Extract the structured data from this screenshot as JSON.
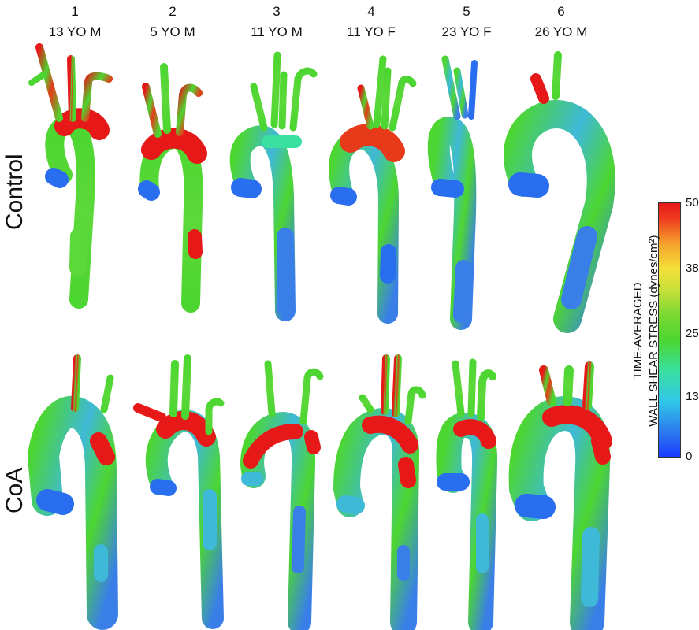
{
  "columns": [
    {
      "number": "1",
      "subject": "13 YO M"
    },
    {
      "number": "2",
      "subject": "5 YO M"
    },
    {
      "number": "3",
      "subject": "11 YO M"
    },
    {
      "number": "4",
      "subject": "11 YO F"
    },
    {
      "number": "5",
      "subject": "23 YO F"
    },
    {
      "number": "6",
      "subject": "26 YO M"
    }
  ],
  "rows": [
    {
      "label": "Control"
    },
    {
      "label": "CoA"
    }
  ],
  "colorbar": {
    "title_line1": "TIME-AVERAGED",
    "title_line2": "WALL SHEAR STRESS (dynes/cm²)",
    "ticks": [
      "50",
      "38",
      "25",
      "13",
      "0"
    ],
    "range": [
      0,
      50
    ],
    "colors": {
      "low": "#1a3cff",
      "mid_low": "#31c8e8",
      "mid": "#4dd631",
      "mid_high": "#f3e13a",
      "high": "#e61818"
    }
  }
}
